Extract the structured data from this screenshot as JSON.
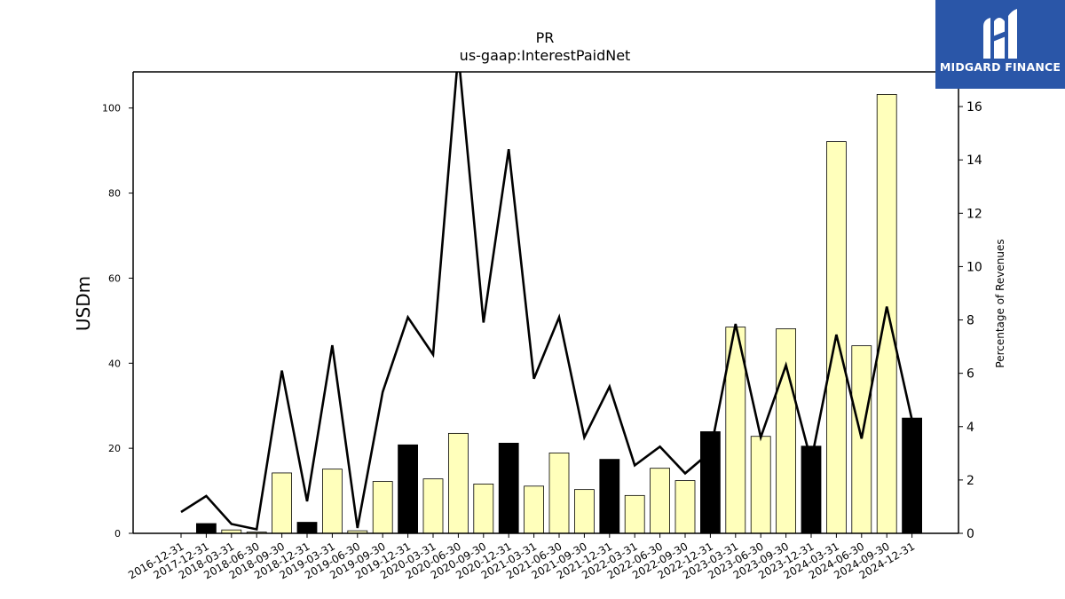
{
  "chart_data": {
    "type": "bar",
    "title": "PR",
    "subtitle": "us-gaap:InterestPaidNet",
    "ylabel": "USDm",
    "y2label": "Percentage of Revenues",
    "ylim": [
      0,
      108.5
    ],
    "y2lim": [
      0,
      17.3
    ],
    "yticks": [
      0,
      20,
      40,
      60,
      80,
      100
    ],
    "y2ticks": [
      0,
      2,
      4,
      6,
      8,
      10,
      12,
      14,
      16
    ],
    "categories": [
      "2016-12-31",
      "2017-12-31",
      "2018-03-31",
      "2018-06-30",
      "2018-09-30",
      "2018-12-31",
      "2019-03-31",
      "2019-06-30",
      "2019-09-30",
      "2019-12-31",
      "2020-03-31",
      "2020-06-30",
      "2020-09-30",
      "2020-12-31",
      "2021-03-31",
      "2021-06-30",
      "2021-09-30",
      "2021-12-31",
      "2022-03-31",
      "2022-06-30",
      "2022-09-30",
      "2022-12-31",
      "2023-03-31",
      "2023-06-30",
      "2023-09-30",
      "2023-12-31",
      "2024-03-31",
      "2024-06-30",
      "2024-09-30",
      "2024-12-31"
    ],
    "series": [
      {
        "kind": "bar",
        "values": [
          0,
          2.3,
          0.8,
          0.3,
          14.2,
          2.6,
          15.1,
          0.6,
          12.2,
          20.8,
          12.8,
          23.5,
          11.6,
          21.2,
          11.1,
          18.9,
          10.3,
          17.4,
          8.9,
          15.3,
          12.4,
          23.9,
          48.5,
          22.8,
          48.1,
          20.5,
          92.1,
          44.1,
          103.2,
          27.1
        ],
        "annual": [
          false,
          true,
          false,
          false,
          false,
          true,
          false,
          false,
          false,
          true,
          false,
          false,
          false,
          true,
          false,
          false,
          false,
          true,
          false,
          false,
          false,
          true,
          false,
          false,
          false,
          true,
          false,
          false,
          false,
          true
        ]
      },
      {
        "kind": "line",
        "axis": "right",
        "values": [
          0.8,
          1.4,
          0.35,
          0.15,
          6.1,
          1.2,
          7.05,
          0.2,
          5.3,
          8.1,
          6.7,
          18.0,
          7.9,
          14.4,
          5.8,
          8.1,
          3.6,
          5.5,
          2.55,
          3.25,
          2.25,
          3.05,
          7.85,
          3.6,
          6.3,
          2.7,
          7.45,
          3.55,
          8.5,
          4.25
        ]
      }
    ],
    "colors": {
      "quarter_bar": "#ffffbb",
      "annual_bar": "#000000",
      "line": "#000000"
    }
  },
  "logo": {
    "text": "MIDGARD FINANCE",
    "color": "#2a56a8"
  }
}
